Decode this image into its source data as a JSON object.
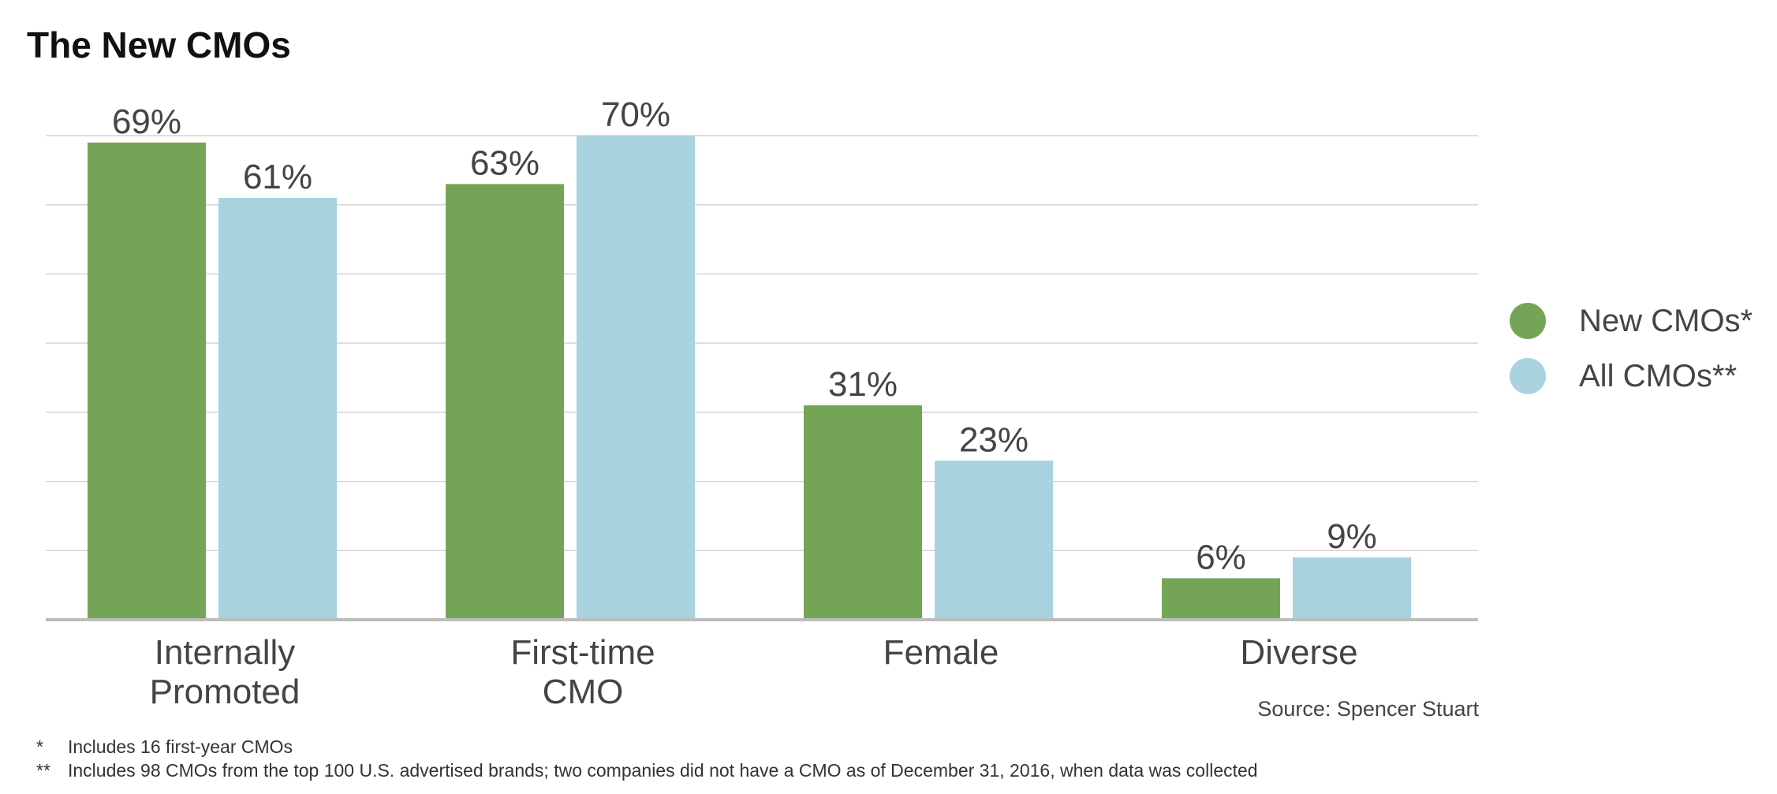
{
  "title": "The New CMOs",
  "source": "Source: Spencer Stuart",
  "footnotes": [
    {
      "mark": "*",
      "text": "Includes 16 first-year CMOs"
    },
    {
      "mark": "**",
      "text": "Includes 98 CMOs from the top 100 U.S. advertised brands; two companies did not have a CMO as of December 31, 2016, when data was collected"
    }
  ],
  "legend": [
    {
      "label": "New CMOs*",
      "color": "#74a557"
    },
    {
      "label": "All CMOs**",
      "color": "#a8d3df"
    }
  ],
  "colors": {
    "gridline": "#d4d4d4",
    "axis": "#bdbdbd",
    "label": "#444444"
  },
  "chart_data": {
    "type": "bar",
    "title": "The New CMOs",
    "categories": [
      [
        "Internally",
        "Promoted"
      ],
      [
        "First-time",
        "CMO"
      ],
      [
        "Female"
      ],
      [
        "Diverse"
      ]
    ],
    "series": [
      {
        "name": "New CMOs*",
        "values": [
          69,
          63,
          31,
          6
        ],
        "labels": [
          "69%",
          "63%",
          "31%",
          "6%"
        ],
        "color": "#74a557"
      },
      {
        "name": "All CMOs**",
        "values": [
          61,
          70,
          23,
          9
        ],
        "labels": [
          "61%",
          "70%",
          "23%",
          "9%"
        ],
        "color": "#a8d3df"
      }
    ],
    "ylim": [
      0,
      70
    ],
    "gridlines": [
      10,
      20,
      30,
      40,
      50,
      60,
      70
    ],
    "xlabel": "",
    "ylabel": "",
    "legend_position": "right"
  }
}
